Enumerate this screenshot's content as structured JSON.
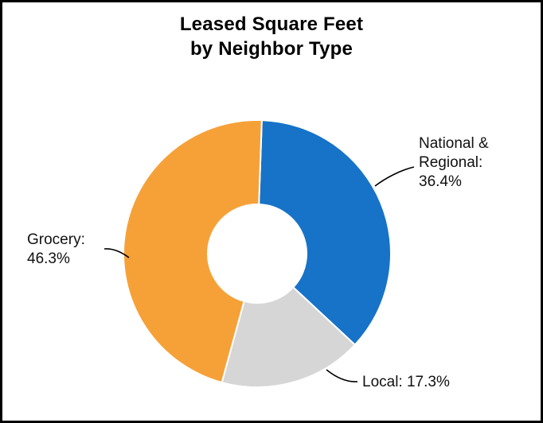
{
  "chart_data": {
    "type": "pie",
    "donut": true,
    "title": "Leased Square Feet by Neighbor Type",
    "title_lines": [
      "Leased Square Feet",
      "by Neighbor Type"
    ],
    "units": "%",
    "legend": "none",
    "labels_outside_with_leader_lines": true,
    "start_angle_deg": -88,
    "slices": [
      {
        "label": "National & Regional",
        "value": 36.4,
        "color": "#1673C8"
      },
      {
        "label": "Local",
        "value": 17.3,
        "color": "#D6D6D6"
      },
      {
        "label": "Grocery",
        "value": 46.3,
        "color": "#F6A138"
      }
    ]
  },
  "labels": {
    "national": [
      "National &",
      "Regional:",
      "36.4%"
    ],
    "grocery": [
      "Grocery:",
      "46.3%"
    ],
    "local": "Local: 17.3%"
  },
  "colors": {
    "national_regional": "#1673C8",
    "local": "#D6D6D6",
    "grocery": "#F6A138",
    "border": "#000000",
    "background": "#FFFFFF"
  }
}
